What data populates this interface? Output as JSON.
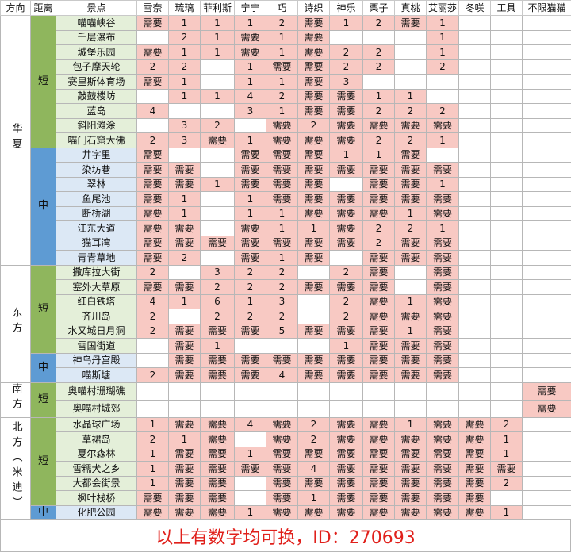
{
  "header": [
    "方向",
    "距离",
    "景点",
    "雪奈",
    "琉璃",
    "菲利斯",
    "宁宁",
    "巧",
    "诗织",
    "神乐",
    "栗子",
    "真桃",
    "艾丽莎",
    "冬咲",
    "工具",
    "不限猫猫"
  ],
  "groups": [
    {
      "direction": "华夏",
      "sections": [
        {
          "distance": "短",
          "kind": "short",
          "rows": [
            {
              "spot": "喵喵峡谷",
              "cells": [
                "需要",
                "1",
                "1",
                "1",
                "2",
                "需要",
                "1",
                "2",
                "需要",
                "1",
                null,
                null,
                null
              ]
            },
            {
              "spot": "千层瀑布",
              "cells": [
                null,
                "2",
                "1",
                "需要",
                "1",
                "需要",
                null,
                null,
                null,
                "1",
                null,
                null,
                null
              ]
            },
            {
              "spot": "城堡乐园",
              "cells": [
                "需要",
                "1",
                "1",
                "需要",
                "1",
                "需要",
                "2",
                "2",
                null,
                "1",
                null,
                null,
                null
              ]
            },
            {
              "spot": "包子摩天轮",
              "cells": [
                "2",
                "2",
                null,
                "1",
                "需要",
                "需要",
                "2",
                "2",
                null,
                "2",
                null,
                null,
                null
              ]
            },
            {
              "spot": "赛里斯体育场",
              "cells": [
                "需要",
                "1",
                null,
                "1",
                "1",
                "需要",
                "3",
                null,
                null,
                null,
                null,
                null,
                null
              ]
            },
            {
              "spot": "敲鼓楼坊",
              "cells": [
                null,
                "1",
                "1",
                "4",
                "2",
                "需要",
                "需要",
                "1",
                "1",
                null,
                null,
                null,
                null
              ]
            },
            {
              "spot": "蓝岛",
              "cells": [
                "4",
                null,
                null,
                "3",
                "1",
                "需要",
                "需要",
                "2",
                "2",
                "2",
                null,
                null,
                null
              ]
            },
            {
              "spot": "斜阳滩涂",
              "cells": [
                null,
                "3",
                "2",
                null,
                "需要",
                "2",
                "需要",
                "需要",
                "需要",
                "需要",
                null,
                null,
                null
              ]
            },
            {
              "spot": "喵门石窟大佛",
              "cells": [
                "2",
                "3",
                "需要",
                "1",
                "需要",
                "需要",
                "需要",
                "2",
                "2",
                "1",
                null,
                null,
                null
              ]
            }
          ]
        },
        {
          "distance": "中",
          "kind": "mid",
          "rows": [
            {
              "spot": "井字里",
              "cells": [
                "需要",
                null,
                null,
                "需要",
                "需要",
                "需要",
                "1",
                "1",
                "需要",
                null,
                null,
                null,
                null
              ]
            },
            {
              "spot": "染坊巷",
              "cells": [
                "需要",
                "需要",
                null,
                "需要",
                "需要",
                "需要",
                "需要",
                "需要",
                "需要",
                "需要",
                null,
                null,
                null
              ]
            },
            {
              "spot": "翠林",
              "cells": [
                "需要",
                "需要",
                "1",
                "需要",
                "需要",
                "需要",
                null,
                "需要",
                "需要",
                "1",
                null,
                null,
                null
              ]
            },
            {
              "spot": "鱼尾池",
              "cells": [
                "需要",
                "1",
                null,
                "1",
                "需要",
                "需要",
                "需要",
                "需要",
                "需要",
                "需要",
                null,
                null,
                null
              ]
            },
            {
              "spot": "断桥湖",
              "cells": [
                "需要",
                "1",
                null,
                "1",
                "1",
                "需要",
                "需要",
                "需要",
                "1",
                "需要",
                null,
                null,
                null
              ]
            },
            {
              "spot": "江东大道",
              "cells": [
                "需要",
                "需要",
                null,
                "需要",
                "1",
                "1",
                "需要",
                "2",
                "2",
                "1",
                null,
                null,
                null
              ]
            },
            {
              "spot": "猫耳湾",
              "cells": [
                "需要",
                "需要",
                "需要",
                "需要",
                "需要",
                "需要",
                "需要",
                "2",
                "需要",
                "需要",
                null,
                null,
                null
              ]
            },
            {
              "spot": "青青草地",
              "cells": [
                "需要",
                "2",
                null,
                "需要",
                "1",
                "需要",
                null,
                "需要",
                "需要",
                "需要",
                null,
                null,
                null
              ]
            }
          ]
        }
      ]
    },
    {
      "direction": "东方",
      "sections": [
        {
          "distance": "短",
          "kind": "short",
          "rows": [
            {
              "spot": "撒库拉大街",
              "cells": [
                "2",
                null,
                "3",
                "2",
                "2",
                null,
                "2",
                "需要",
                null,
                "需要",
                null,
                null,
                null
              ]
            },
            {
              "spot": "塞外大草原",
              "cells": [
                "需要",
                "需要",
                "2",
                "2",
                "2",
                "需要",
                "需要",
                "需要",
                null,
                "需要",
                null,
                null,
                null
              ]
            },
            {
              "spot": "红白铁塔",
              "cells": [
                "4",
                "1",
                "6",
                "1",
                "3",
                null,
                "2",
                "需要",
                "1",
                "需要",
                null,
                null,
                null
              ]
            },
            {
              "spot": "齐川岛",
              "cells": [
                "2",
                null,
                "2",
                "2",
                "2",
                null,
                "2",
                "需要",
                "需要",
                "需要",
                null,
                null,
                null
              ]
            },
            {
              "spot": "水又城日月洞",
              "cells": [
                "2",
                "需要",
                "需要",
                "需要",
                "5",
                "需要",
                "需要",
                "需要",
                "1",
                "需要",
                null,
                null,
                null
              ]
            },
            {
              "spot": "雪国街道",
              "cells": [
                null,
                "需要",
                "1",
                null,
                null,
                null,
                "1",
                "需要",
                "需要",
                "需要",
                null,
                null,
                null
              ]
            }
          ]
        },
        {
          "distance": "中",
          "kind": "mid",
          "rows": [
            {
              "spot": "神鸟丹宫殿",
              "cells": [
                null,
                "需要",
                "需要",
                "需要",
                "需要",
                "需要",
                "需要",
                "需要",
                "需要",
                "需要",
                null,
                null,
                null
              ]
            },
            {
              "spot": "喵斯塘",
              "cells": [
                "2",
                "需要",
                "需要",
                "需要",
                "4",
                "需要",
                "需要",
                "需要",
                "需要",
                "需要",
                null,
                null,
                null
              ]
            }
          ]
        }
      ]
    },
    {
      "direction": "南方",
      "sections": [
        {
          "distance": "短",
          "kind": "short",
          "rows": [
            {
              "spot": "奥喵村珊瑚礁",
              "cells": [
                null,
                null,
                null,
                null,
                null,
                null,
                null,
                null,
                null,
                null,
                null,
                null,
                "需要"
              ]
            },
            {
              "spot": "奥喵村城郊",
              "cells": [
                null,
                null,
                null,
                null,
                null,
                null,
                null,
                null,
                null,
                null,
                null,
                null,
                "需要"
              ]
            }
          ]
        }
      ]
    },
    {
      "direction": "北方（米迪）",
      "sections": [
        {
          "distance": "短",
          "kind": "short",
          "rows": [
            {
              "spot": "水晶球广场",
              "cells": [
                "1",
                "需要",
                "需要",
                "4",
                "需要",
                "2",
                "需要",
                "需要",
                "1",
                "需要",
                "需要",
                "2",
                null
              ]
            },
            {
              "spot": "草裙岛",
              "cells": [
                "2",
                "1",
                "需要",
                null,
                "需要",
                "2",
                "需要",
                "需要",
                "需要",
                "需要",
                "需要",
                "1",
                null
              ]
            },
            {
              "spot": "夏尔森林",
              "cells": [
                "1",
                "需要",
                "需要",
                "1",
                "需要",
                "需要",
                "需要",
                "需要",
                "需要",
                "需要",
                "需要",
                "1",
                null
              ]
            },
            {
              "spot": "雪糯犬之乡",
              "cells": [
                "1",
                "需要",
                "需要",
                "需要",
                "需要",
                "4",
                "需要",
                "需要",
                "需要",
                "需要",
                "需要",
                "需要",
                null
              ]
            },
            {
              "spot": "大都会街景",
              "cells": [
                "1",
                "需要",
                "需要",
                null,
                "需要",
                "需要",
                "需要",
                "需要",
                "需要",
                "需要",
                "需要",
                "2",
                null
              ]
            },
            {
              "spot": "枫叶栈桥",
              "cells": [
                "需要",
                "需要",
                "需要",
                null,
                "需要",
                "1",
                "需要",
                "需要",
                "需要",
                "需要",
                "需要",
                null,
                null
              ]
            }
          ]
        },
        {
          "distance": "中",
          "kind": "mid",
          "rows": [
            {
              "spot": "化肥公园",
              "cells": [
                "需要",
                "需要",
                "需要",
                "1",
                "需要",
                "需要",
                "需要",
                "需要",
                "需要",
                "需要",
                "需要",
                "1",
                null
              ]
            }
          ]
        }
      ]
    }
  ],
  "footer": "以上有数字均可换，ID：270693"
}
